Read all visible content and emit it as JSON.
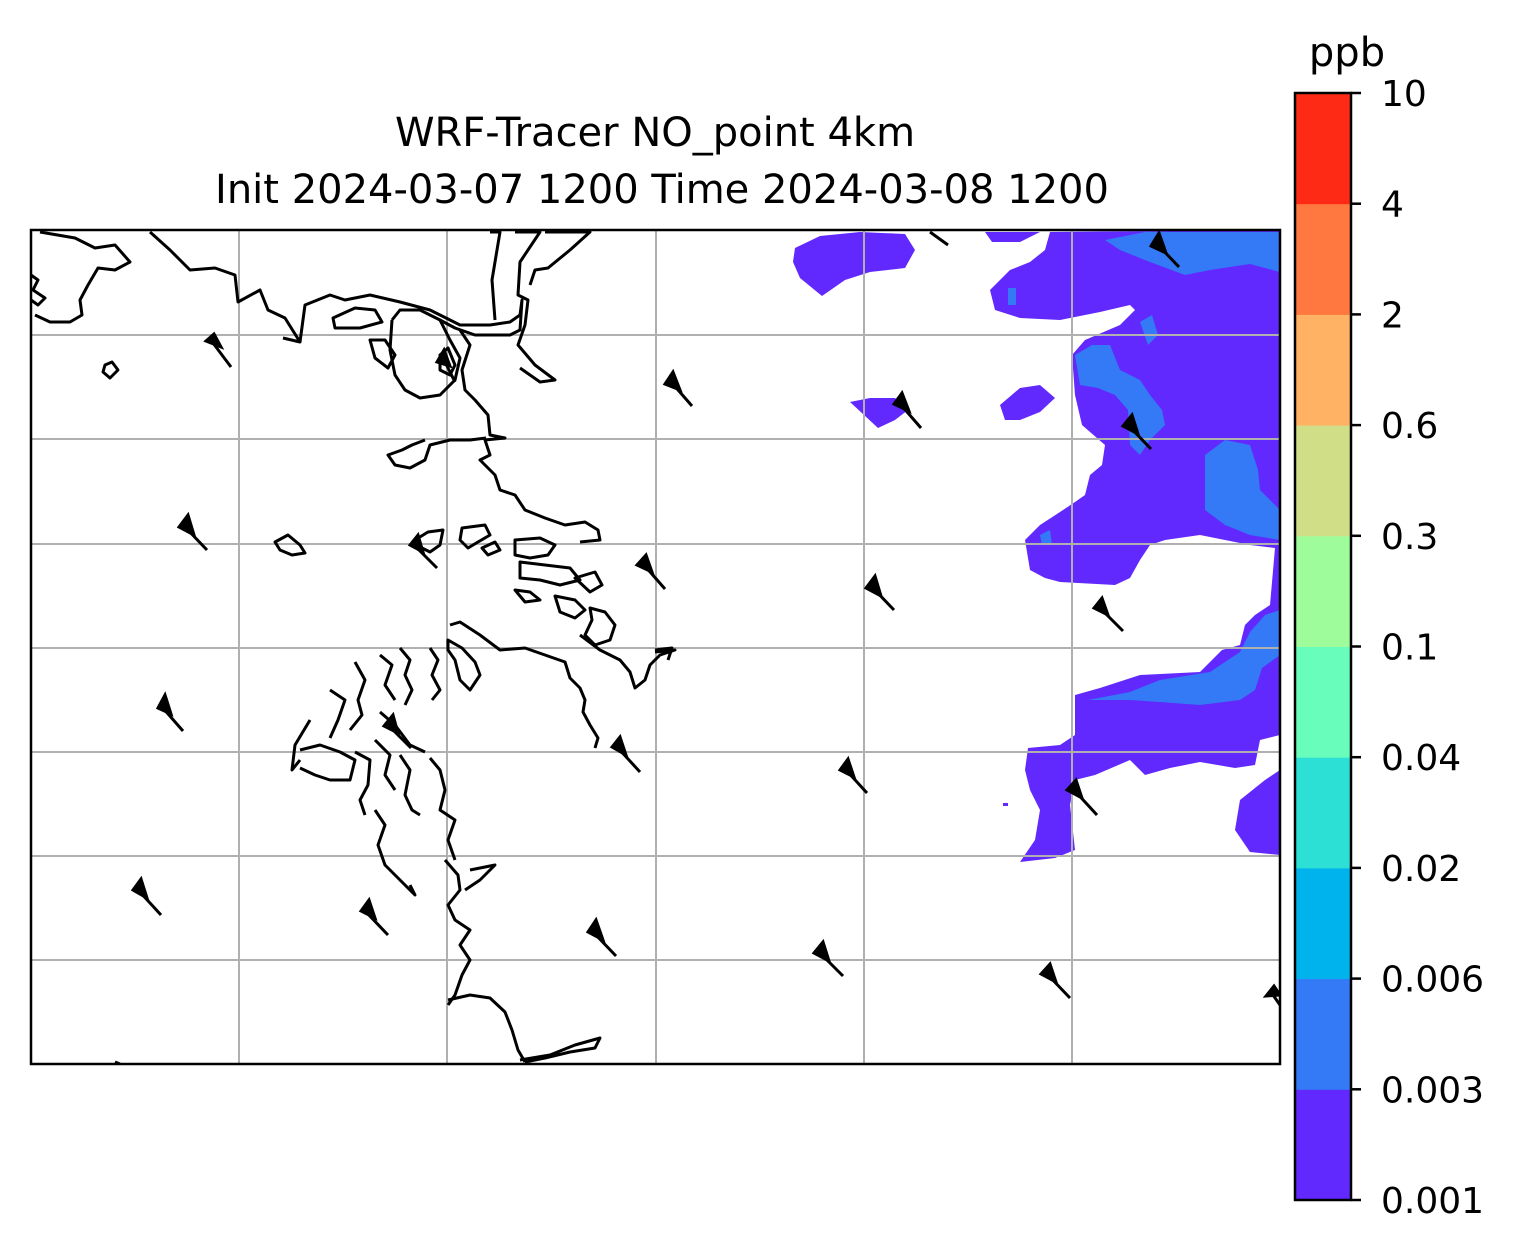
{
  "title": {
    "line1": "WRF-Tracer NO_point 4km",
    "line2": "Init 2024-03-07 1200 Time 2024-03-08 1200"
  },
  "colorbar": {
    "unit": "ppb",
    "levels": [
      "0.001",
      "0.003",
      "0.006",
      "0.02",
      "0.04",
      "0.1",
      "0.3",
      "0.6",
      "2",
      "4",
      "10"
    ],
    "colors": [
      "#6229fe",
      "#3479f5",
      "#00b3ec",
      "#2ce0d6",
      "#69fdbc",
      "#9efc9b",
      "#d0df87",
      "#ffb263",
      "#ff7840",
      "#ff2a15"
    ]
  },
  "map": {
    "gridlines": "on",
    "wind_barbs": "on",
    "coastlines": "on",
    "plume_colors": [
      "#6229fe",
      "#3479f5"
    ]
  }
}
